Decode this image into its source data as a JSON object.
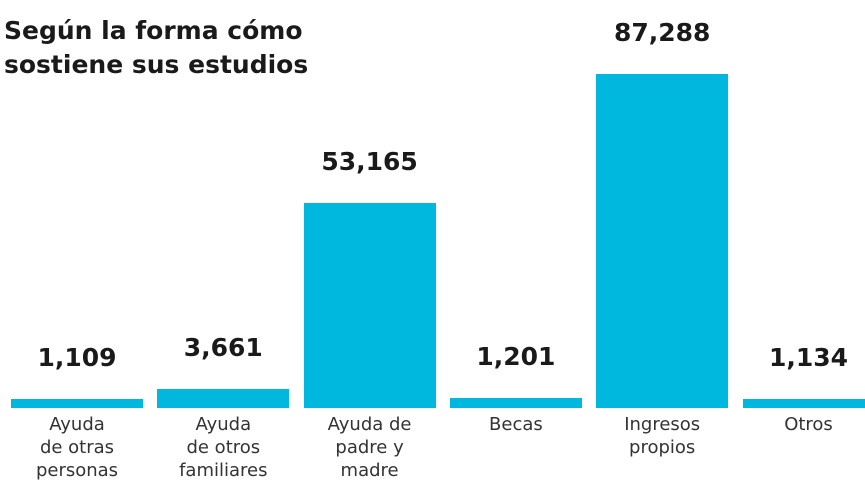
{
  "chart_data": {
    "type": "bar",
    "title": "Según la forma cómo\nsostiene sus estudios",
    "categories": [
      "Ayuda\nde otras\npersonas",
      "Ayuda\nde otros\nfamiliares",
      "Ayuda de\npadre y\nmadre",
      "Becas",
      "Ingresos\npropios",
      "Otros"
    ],
    "values": [
      1109,
      3661,
      53165,
      1201,
      87288,
      1134
    ],
    "value_labels": [
      "1,109",
      "3,661",
      "53,165",
      "1,201",
      "87,288",
      "1,134"
    ],
    "color": "#00b8de"
  }
}
